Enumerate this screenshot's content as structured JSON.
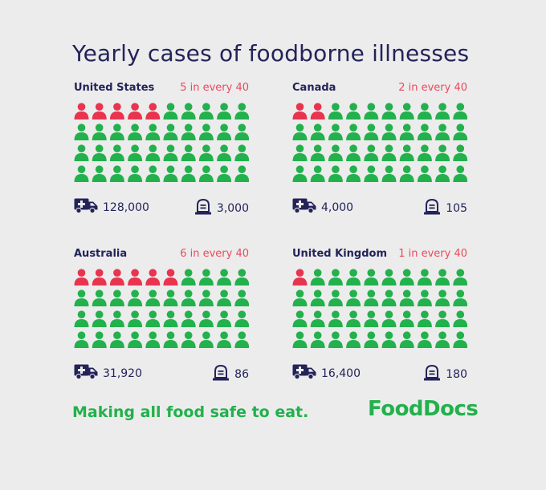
{
  "title": "Yearly cases of foodborne illnesses",
  "tagline": "Making all food safe to eat.",
  "logo": "FoodDocs",
  "colors": {
    "affected": "#e8344f",
    "unaffected": "#22b14c",
    "text": "#23235a",
    "ratio": "#e84b5c"
  },
  "icons": {
    "cases": "ambulance-icon",
    "deaths": "tombstone-icon"
  },
  "chart_data": [
    {
      "type": "table",
      "country": "United States",
      "ratio_label": "5 in every 40",
      "affected": 5,
      "total": 40,
      "cases_label": "128,000",
      "deaths_label": "3,000"
    },
    {
      "type": "table",
      "country": "Canada",
      "ratio_label": "2 in every 40",
      "affected": 2,
      "total": 40,
      "cases_label": "4,000",
      "deaths_label": "105"
    },
    {
      "type": "table",
      "country": "Australia",
      "ratio_label": "6 in every 40",
      "affected": 6,
      "total": 40,
      "cases_label": "31,920",
      "deaths_label": "86"
    },
    {
      "type": "table",
      "country": "United Kingdom",
      "ratio_label": "1 in every 40",
      "affected": 1,
      "total": 40,
      "cases_label": "16,400",
      "deaths_label": "180"
    }
  ]
}
